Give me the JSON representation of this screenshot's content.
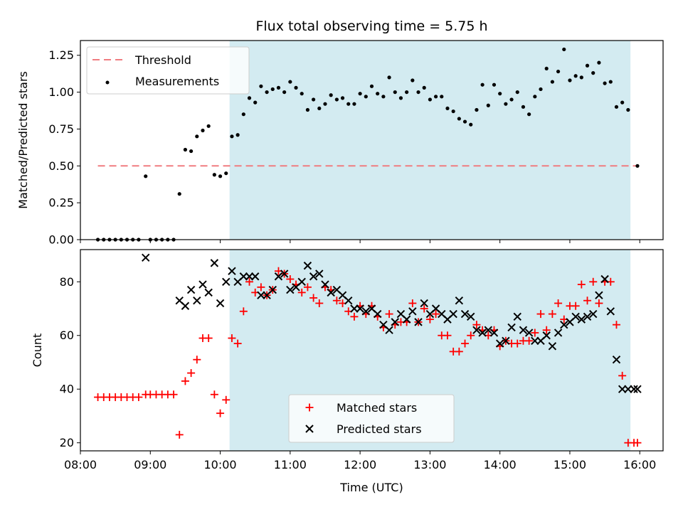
{
  "chart_data": [
    {
      "type": "scatter",
      "title": "Flux total observing time = 5.75 h",
      "xlabel": "",
      "ylabel": "Matched/Predicted stars",
      "xlim": [
        "08:00",
        "16:20"
      ],
      "ylim": [
        0,
        1.35
      ],
      "yticks": [
        0.0,
        0.25,
        0.5,
        0.75,
        1.0,
        1.25
      ],
      "ytick_labels": [
        "0.00",
        "0.25",
        "0.50",
        "0.75",
        "1.00",
        "1.25"
      ],
      "grid": false,
      "legend_position": "top-left",
      "shaded_span": {
        "x0": "10:08",
        "x1": "15:52",
        "color": "#d3ebf1"
      },
      "threshold": {
        "name": "Threshold",
        "value": 0.5,
        "x0": "08:15",
        "x1": "15:58",
        "color": "#f07c80"
      },
      "series": [
        {
          "name": "Measurements",
          "color": "#000000",
          "x": [
            "08:15",
            "08:20",
            "08:25",
            "08:30",
            "08:35",
            "08:40",
            "08:45",
            "08:50",
            "08:56",
            "09:00",
            "09:05",
            "09:10",
            "09:15",
            "09:20",
            "09:25",
            "09:30",
            "09:35",
            "09:40",
            "09:45",
            "09:50",
            "09:55",
            "10:00",
            "10:05",
            "10:10",
            "10:15",
            "10:20",
            "10:25",
            "10:30",
            "10:35",
            "10:40",
            "10:45",
            "10:50",
            "10:55",
            "11:00",
            "11:05",
            "11:10",
            "11:15",
            "11:20",
            "11:25",
            "11:30",
            "11:35",
            "11:40",
            "11:45",
            "11:50",
            "11:55",
            "12:00",
            "12:05",
            "12:10",
            "12:15",
            "12:20",
            "12:25",
            "12:30",
            "12:35",
            "12:40",
            "12:45",
            "12:50",
            "12:55",
            "13:00",
            "13:05",
            "13:10",
            "13:15",
            "13:20",
            "13:25",
            "13:30",
            "13:35",
            "13:40",
            "13:45",
            "13:50",
            "13:55",
            "14:00",
            "14:05",
            "14:10",
            "14:15",
            "14:20",
            "14:25",
            "14:30",
            "14:35",
            "14:40",
            "14:45",
            "14:50",
            "14:55",
            "15:00",
            "15:05",
            "15:10",
            "15:15",
            "15:20",
            "15:25",
            "15:30",
            "15:35",
            "15:40",
            "15:45",
            "15:50",
            "15:58"
          ],
          "y": [
            0.0,
            0.0,
            0.0,
            0.0,
            0.0,
            0.0,
            0.0,
            0.0,
            0.43,
            0.0,
            0.0,
            0.0,
            0.0,
            0.0,
            0.31,
            0.61,
            0.6,
            0.7,
            0.74,
            0.77,
            0.44,
            0.43,
            0.45,
            0.7,
            0.71,
            0.85,
            0.96,
            0.93,
            1.04,
            1.0,
            1.02,
            1.03,
            1.0,
            1.07,
            1.03,
            0.99,
            0.88,
            0.95,
            0.89,
            0.92,
            0.98,
            0.95,
            0.96,
            0.92,
            0.92,
            0.99,
            0.97,
            1.04,
            0.99,
            0.97,
            1.1,
            1.0,
            0.96,
            1.0,
            1.08,
            1.0,
            1.03,
            0.95,
            0.97,
            0.97,
            0.89,
            0.87,
            0.82,
            0.8,
            0.78,
            0.88,
            1.05,
            0.91,
            1.05,
            0.99,
            0.92,
            0.95,
            1.0,
            0.9,
            0.85,
            0.97,
            1.02,
            1.16,
            1.07,
            1.14,
            1.29,
            1.08,
            1.11,
            1.1,
            1.18,
            1.13,
            1.2,
            1.06,
            1.07,
            0.9,
            0.93,
            0.88,
            0.5
          ]
        }
      ]
    },
    {
      "type": "scatter",
      "title": "",
      "xlabel": "Time (UTC)",
      "ylabel": "Count",
      "xlim": [
        "08:00",
        "16:20"
      ],
      "ylim": [
        17,
        92
      ],
      "xticks": [
        "08:00",
        "09:00",
        "10:00",
        "11:00",
        "12:00",
        "13:00",
        "14:00",
        "15:00",
        "16:00"
      ],
      "yticks": [
        20,
        40,
        60,
        80
      ],
      "grid": false,
      "legend_position": "bottom-center",
      "shaded_span": {
        "x0": "10:08",
        "x1": "15:52",
        "color": "#d3ebf1"
      },
      "series": [
        {
          "name": "Matched stars",
          "marker": "+",
          "color": "#ff0000",
          "x": [
            "08:15",
            "08:20",
            "08:25",
            "08:30",
            "08:35",
            "08:40",
            "08:45",
            "08:50",
            "08:56",
            "09:00",
            "09:05",
            "09:10",
            "09:15",
            "09:20",
            "09:25",
            "09:30",
            "09:35",
            "09:40",
            "09:45",
            "09:50",
            "09:55",
            "10:00",
            "10:05",
            "10:10",
            "10:15",
            "10:20",
            "10:25",
            "10:30",
            "10:35",
            "10:40",
            "10:45",
            "10:50",
            "10:55",
            "11:00",
            "11:05",
            "11:10",
            "11:15",
            "11:20",
            "11:25",
            "11:30",
            "11:35",
            "11:40",
            "11:45",
            "11:50",
            "11:55",
            "12:00",
            "12:05",
            "12:10",
            "12:15",
            "12:20",
            "12:25",
            "12:30",
            "12:35",
            "12:40",
            "12:45",
            "12:50",
            "12:55",
            "13:00",
            "13:05",
            "13:10",
            "13:15",
            "13:20",
            "13:25",
            "13:30",
            "13:35",
            "13:40",
            "13:45",
            "13:50",
            "13:55",
            "14:00",
            "14:05",
            "14:10",
            "14:15",
            "14:20",
            "14:25",
            "14:30",
            "14:35",
            "14:40",
            "14:45",
            "14:50",
            "14:55",
            "15:00",
            "15:05",
            "15:10",
            "15:15",
            "15:20",
            "15:25",
            "15:30",
            "15:35",
            "15:40",
            "15:45",
            "15:50",
            "15:55",
            "15:58"
          ],
          "y": [
            37,
            37,
            37,
            37,
            37,
            37,
            37,
            37,
            38,
            38,
            38,
            38,
            38,
            38,
            23,
            43,
            46,
            51,
            59,
            59,
            38,
            31,
            36,
            59,
            57,
            69,
            80,
            76,
            78,
            75,
            77,
            84,
            83,
            81,
            79,
            76,
            78,
            74,
            72,
            78,
            77,
            73,
            72,
            69,
            67,
            71,
            68,
            71,
            67,
            63,
            68,
            64,
            65,
            65,
            72,
            65,
            70,
            66,
            68,
            60,
            60,
            54,
            54,
            57,
            60,
            64,
            62,
            60,
            62,
            56,
            58,
            57,
            57,
            58,
            58,
            61,
            68,
            62,
            68,
            72,
            66,
            71,
            71,
            79,
            73,
            80,
            72,
            80,
            80,
            64,
            45,
            20,
            20,
            20
          ],
          "note": ""
        },
        {
          "name": "Predicted stars",
          "marker": "x",
          "color": "#000000",
          "x": [
            "08:56",
            "09:25",
            "09:30",
            "09:35",
            "09:40",
            "09:45",
            "09:50",
            "09:55",
            "10:00",
            "10:05",
            "10:10",
            "10:15",
            "10:20",
            "10:25",
            "10:30",
            "10:35",
            "10:40",
            "10:45",
            "10:50",
            "10:55",
            "11:00",
            "11:05",
            "11:10",
            "11:15",
            "11:20",
            "11:25",
            "11:30",
            "11:35",
            "11:40",
            "11:45",
            "11:50",
            "11:55",
            "12:00",
            "12:05",
            "12:10",
            "12:15",
            "12:20",
            "12:25",
            "12:30",
            "12:35",
            "12:40",
            "12:45",
            "12:50",
            "12:55",
            "13:00",
            "13:05",
            "13:10",
            "13:15",
            "13:20",
            "13:25",
            "13:30",
            "13:35",
            "13:40",
            "13:45",
            "13:50",
            "13:55",
            "14:00",
            "14:05",
            "14:10",
            "14:15",
            "14:20",
            "14:25",
            "14:30",
            "14:35",
            "14:40",
            "14:45",
            "14:50",
            "14:55",
            "15:00",
            "15:05",
            "15:10",
            "15:15",
            "15:20",
            "15:25",
            "15:30",
            "15:35",
            "15:40",
            "15:45",
            "15:50",
            "15:55",
            "15:58"
          ],
          "y": [
            89,
            73,
            71,
            77,
            73,
            79,
            76,
            87,
            72,
            80,
            84,
            80,
            82,
            82,
            82,
            75,
            75,
            77,
            82,
            83,
            77,
            78,
            80,
            86,
            82,
            83,
            79,
            76,
            77,
            75,
            73,
            70,
            70,
            69,
            70,
            68,
            64,
            62,
            65,
            68,
            66,
            69,
            65,
            72,
            68,
            70,
            68,
            66,
            68,
            73,
            68,
            67,
            62,
            61,
            62,
            61,
            57,
            58,
            63,
            67,
            62,
            61,
            58,
            58,
            60,
            56,
            61,
            64,
            65,
            67,
            66,
            67,
            68,
            75,
            81,
            69,
            51,
            40,
            40,
            40,
            40
          ]
        }
      ]
    }
  ]
}
